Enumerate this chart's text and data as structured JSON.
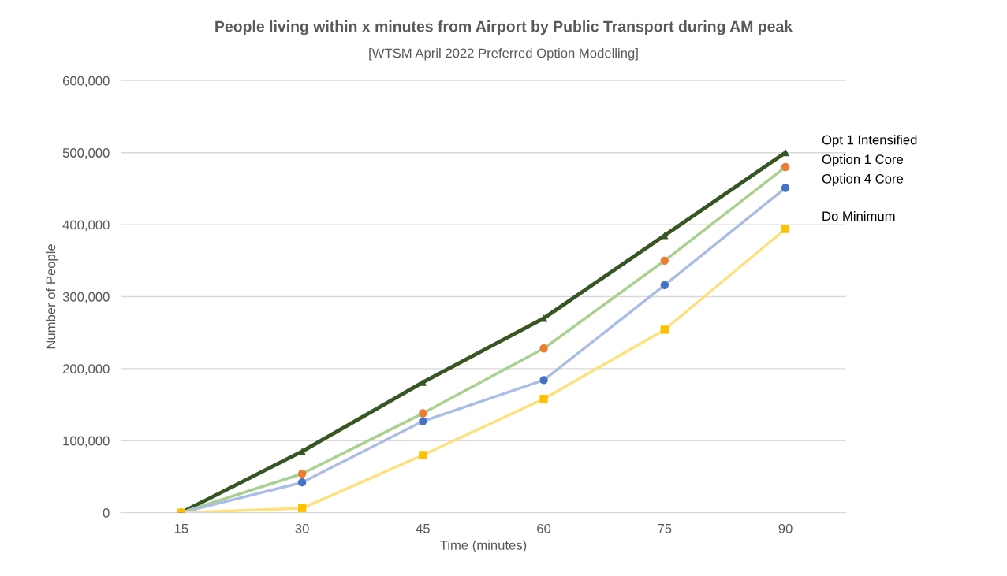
{
  "chart_data": {
    "type": "line",
    "title": "People living within x minutes from Airport by Public Transport during AM peak",
    "subtitle": "[WTSM April 2022 Preferred Option Modelling]",
    "xlabel": "Time (minutes)",
    "ylabel": "Number of People",
    "categories": [
      "15",
      "30",
      "45",
      "60",
      "75",
      "90"
    ],
    "series": [
      {
        "name": "Opt 1 Intensified",
        "color": "#375623",
        "colors": [
          "#375623",
          "#375623",
          "#375623",
          "#375623",
          "#375623",
          "#375623"
        ],
        "marker": "triangle",
        "values": [
          0,
          85000,
          181000,
          270000,
          385000,
          500000
        ]
      },
      {
        "name": "Option 1 Core",
        "color": "#a9d18e",
        "colors": [
          "#ed7d31",
          "#ed7d31",
          "#ed7d31",
          "#ed7d31",
          "#ed7d31",
          "#ed7d31"
        ],
        "marker": "circle",
        "values": [
          0,
          54000,
          138000,
          228000,
          350000,
          480000
        ]
      },
      {
        "name": "Option 4 Core",
        "color": "#a9bde8",
        "colors": [
          "#4472c4",
          "#4472c4",
          "#4472c4",
          "#4472c4",
          "#4472c4",
          "#4472c4"
        ],
        "marker": "circle",
        "values": [
          0,
          42000,
          127000,
          184000,
          316000,
          451000
        ]
      },
      {
        "name": "Do Minimum",
        "color": "#ffe07a",
        "colors": [
          "#ffc000",
          "#ffc000",
          "#ffc000",
          "#ffc000",
          "#ffc000",
          "#ffc000"
        ],
        "marker": "square",
        "values": [
          0,
          6000,
          80000,
          158000,
          254000,
          394000
        ]
      }
    ],
    "ylim": [
      0,
      600000
    ],
    "yticks": [
      {
        "value": 0,
        "label": "0"
      },
      {
        "value": 100000,
        "label": "100,000"
      },
      {
        "value": 200000,
        "label": "200,000"
      },
      {
        "value": 300000,
        "label": "300,000"
      },
      {
        "value": 400000,
        "label": "400,000"
      },
      {
        "value": 500000,
        "label": "500,000"
      },
      {
        "value": 600000,
        "label": "600,000"
      }
    ],
    "grid": "y",
    "legend": false,
    "line_style": "solid"
  }
}
